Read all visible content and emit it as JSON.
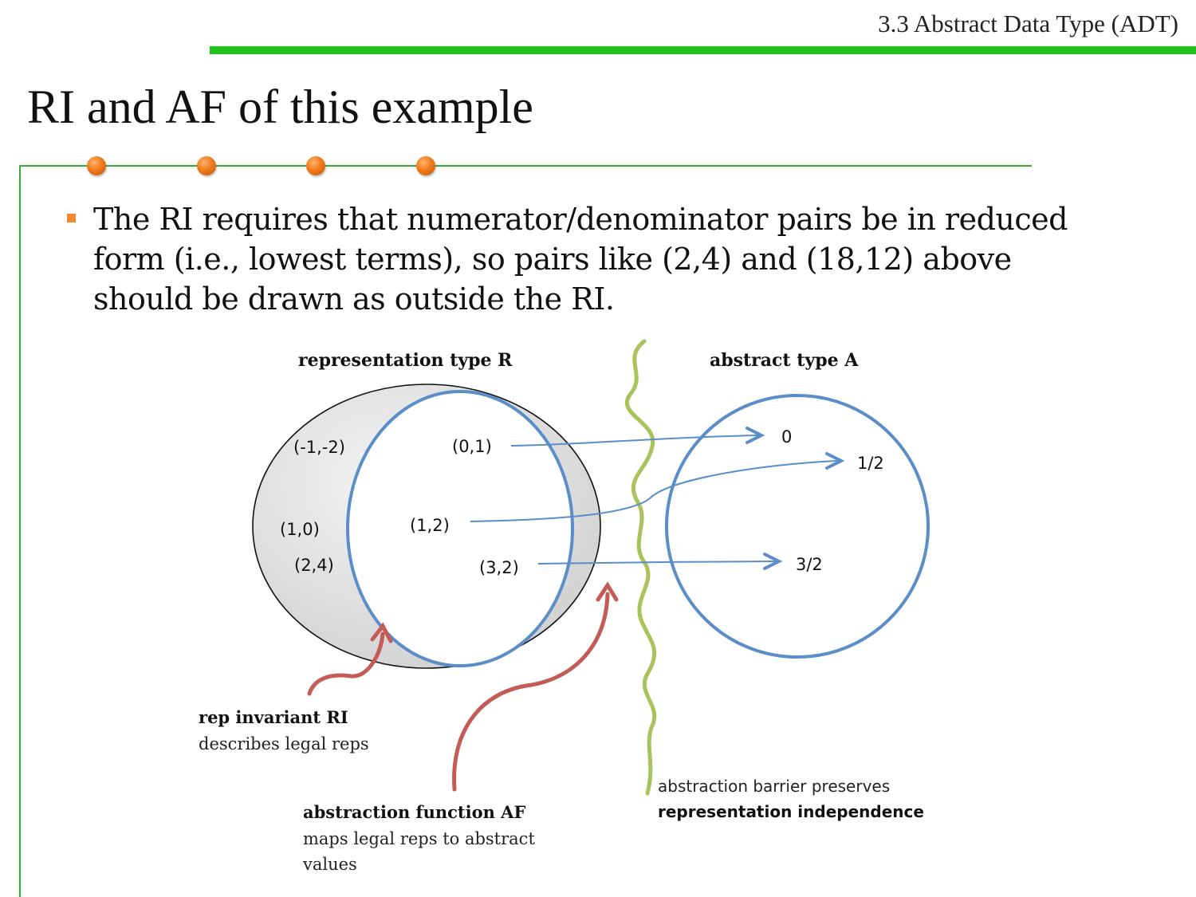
{
  "header": {
    "section_title": "3.3 Abstract Data Type (ADT)"
  },
  "slide": {
    "title": "RI and AF of this example",
    "bullet": "The RI requires that numerator/denominator pairs be in reduced form (i.e., lowest terms), so pairs like (2,4) and (18,12) above should be drawn as outside the RI."
  },
  "diagram": {
    "rep_type_label": "representation type R",
    "abstract_type_label": "abstract type A",
    "outside_ri_pairs": [
      "(-1,-2)",
      "(1,0)",
      "(2,4)"
    ],
    "inside_ri_pairs": [
      "(0,1)",
      "(1,2)",
      "(3,2)"
    ],
    "abstract_values": [
      "0",
      "1/2",
      "3/2"
    ],
    "ri_callout": {
      "title": "rep invariant RI",
      "desc": "describes legal reps"
    },
    "af_callout": {
      "title": "abstraction function AF",
      "desc_line1": "maps legal reps to abstract",
      "desc_line2": "values"
    },
    "barrier_callout": {
      "line1": "abstraction barrier preserves",
      "line2": "representation independence"
    }
  },
  "colors": {
    "accent_green": "#22c01e",
    "frame_green": "#33b030",
    "bullet_orange": "#f08a2a",
    "circle_blue": "#5b8ec8",
    "callout_red": "#c45b56",
    "barrier_green": "#a8c35a"
  }
}
